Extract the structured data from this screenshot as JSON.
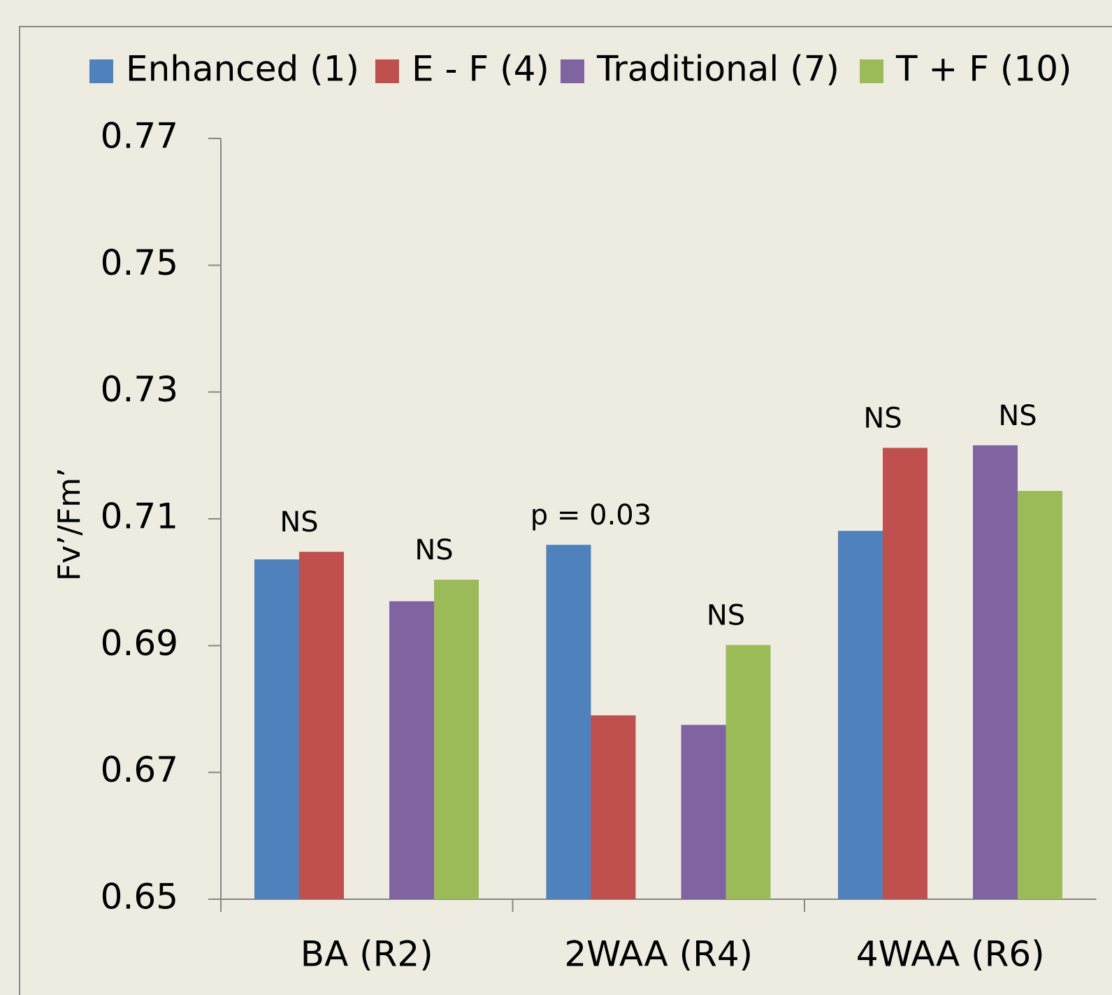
{
  "chart_data": {
    "type": "bar",
    "categories": [
      "BA (R2)",
      "2WAA (R4)",
      "4WAA (R6)"
    ],
    "y_label": "Fv’/Fm’",
    "series": [
      {
        "name": "Enhanced (1)",
        "color": "#4f81bd",
        "values": [
          0.7036,
          0.7059,
          0.7081
        ]
      },
      {
        "name": "E - F (4)",
        "color": "#c0504d",
        "values": [
          0.7048,
          0.679,
          0.7212
        ]
      },
      {
        "name": "Traditional (7)",
        "color": "#8064a2",
        "values": [
          0.697,
          0.6775,
          0.7216
        ]
      },
      {
        "name": "T + F (10)",
        "color": "#9bbb59",
        "values": [
          0.7004,
          0.6901,
          0.7144
        ]
      }
    ],
    "annotations": [
      "NS",
      "NS",
      "p = 0.03",
      "NS",
      "NS",
      "NS"
    ],
    "ylim": [
      0.65,
      0.77
    ],
    "yticks": [
      0.65,
      0.67,
      0.69,
      0.71,
      0.73,
      0.75,
      0.77
    ],
    "legend": "top"
  }
}
